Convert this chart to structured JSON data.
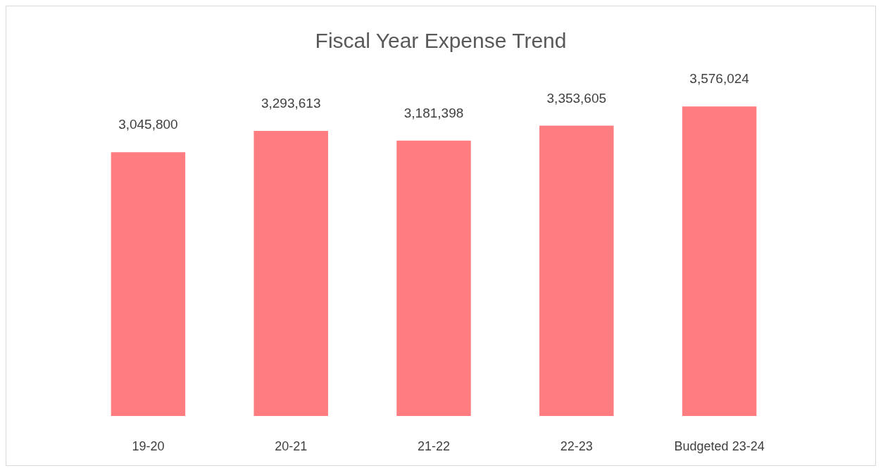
{
  "chart_data": {
    "type": "bar",
    "title": "Fiscal Year Expense Trend",
    "categories": [
      "19-20",
      "20-21",
      "21-22",
      "22-23",
      "Budgeted 23-24"
    ],
    "values": [
      3045800,
      3293613,
      3181398,
      3353605,
      3576024
    ],
    "value_labels": [
      "3,045,800",
      "3,293,613",
      "3,181,398",
      "3,353,605",
      "3,576,024"
    ],
    "color": "#ff7c80",
    "tick_labels": "x",
    "grid": false
  }
}
